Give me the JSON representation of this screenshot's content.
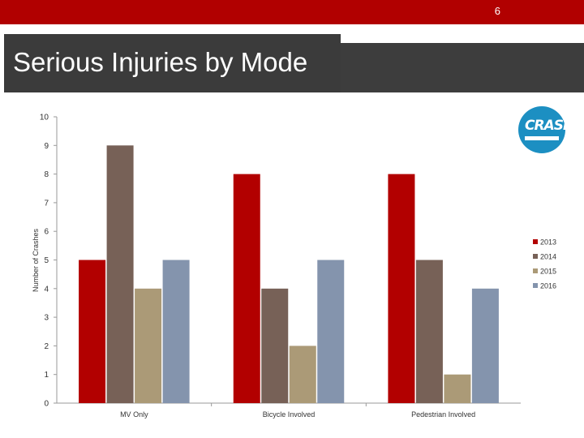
{
  "slide": {
    "page_number": "6",
    "title": "Serious Injuries by Mode",
    "logo_text": "CRASH"
  },
  "chart_data": {
    "type": "bar",
    "title": "",
    "xlabel": "",
    "ylabel": "Number of Crashes",
    "ylim": [
      0,
      10
    ],
    "yticks": [
      0,
      1,
      2,
      3,
      4,
      5,
      6,
      7,
      8,
      9,
      10
    ],
    "grid": false,
    "legend_position": "right",
    "categories": [
      "MV Only",
      "Bicycle Involved",
      "Pedestrian Involved"
    ],
    "series": [
      {
        "name": "2013",
        "color": "#b20000",
        "values": [
          5,
          8,
          8
        ]
      },
      {
        "name": "2014",
        "color": "#776157",
        "values": [
          9,
          4,
          5
        ]
      },
      {
        "name": "2015",
        "color": "#ab9a77",
        "values": [
          4,
          2,
          1
        ]
      },
      {
        "name": "2016",
        "color": "#8494ad",
        "values": [
          5,
          5,
          4
        ]
      }
    ]
  }
}
